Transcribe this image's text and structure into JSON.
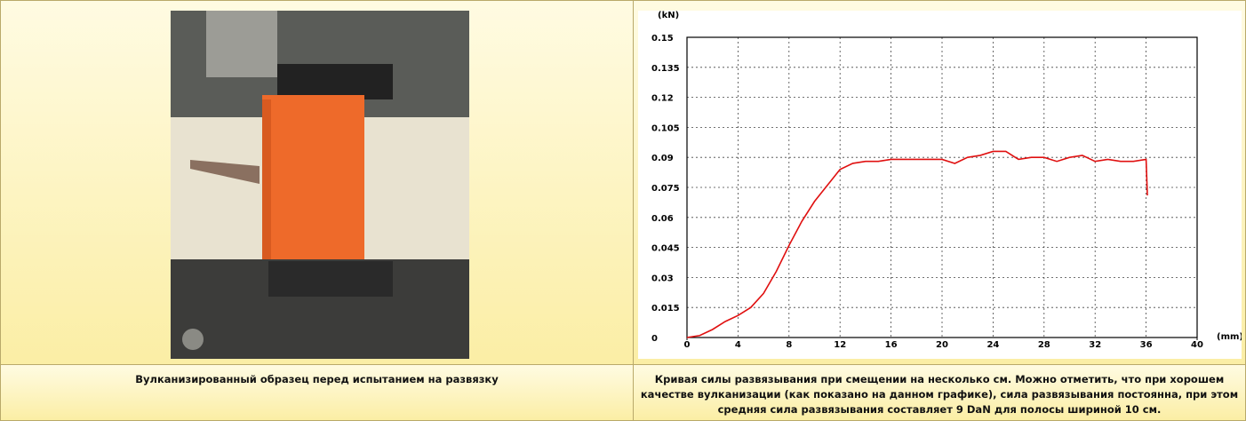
{
  "captions": [
    "Вулканизированный образец перед испытанием на развязку",
    "Кривая силы развязывания при смещении на несколько см. Можно отметить, что при хорошем качестве вулканизации (как показано на данном графике), сила развязывания постоянна, при этом средняя сила развязывания составляет 9 DaN для полосы шириной 10 см."
  ],
  "chart_data": {
    "type": "line",
    "y_unit": "(kN)",
    "x_unit": "(mm)",
    "x": [
      0,
      1,
      2,
      3,
      4,
      5,
      6,
      7,
      8,
      9,
      10,
      11,
      12,
      13,
      14,
      15,
      16,
      17,
      18,
      19,
      20,
      21,
      22,
      23,
      24,
      25,
      26,
      27,
      28,
      29,
      30,
      31,
      32,
      33,
      34,
      35,
      36,
      36.1
    ],
    "series": [
      {
        "color": "#e01010",
        "values": [
          0,
          0.001,
          0.004,
          0.008,
          0.011,
          0.015,
          0.022,
          0.033,
          0.046,
          0.058,
          0.068,
          0.076,
          0.084,
          0.087,
          0.088,
          0.088,
          0.089,
          0.089,
          0.089,
          0.089,
          0.089,
          0.087,
          0.09,
          0.091,
          0.093,
          0.093,
          0.089,
          0.09,
          0.09,
          0.088,
          0.09,
          0.091,
          0.088,
          0.089,
          0.088,
          0.088,
          0.089,
          0.071
        ]
      }
    ],
    "xlim": [
      0,
      40
    ],
    "ylim": [
      0,
      0.15
    ],
    "xticks": [
      0,
      4,
      8,
      12,
      16,
      20,
      24,
      28,
      32,
      36,
      40
    ],
    "yticks": [
      0,
      0.015,
      0.03,
      0.045,
      0.06,
      0.075,
      0.09,
      0.105,
      0.12,
      0.135,
      0.15
    ],
    "grid": true
  }
}
